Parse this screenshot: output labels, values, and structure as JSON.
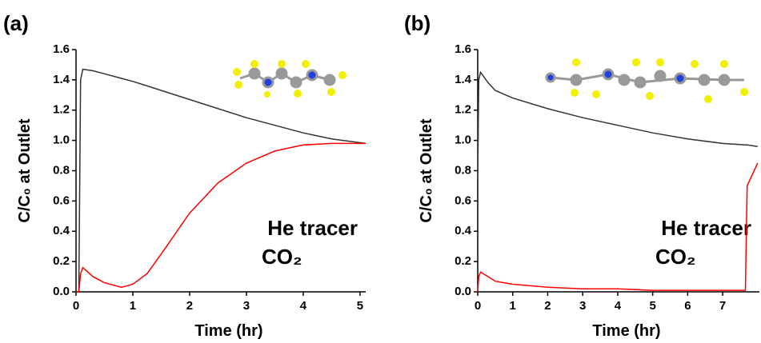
{
  "chart_data": [
    {
      "type": "line",
      "panel_label": "(a)",
      "x_label": "Time (hr)",
      "y_label": "C/C₀ at Outlet",
      "x": [
        0,
        0.05,
        0.08,
        0.12,
        0.3,
        0.5,
        0.8,
        1,
        1.25,
        1.5,
        2,
        2.5,
        3,
        3.5,
        4,
        4.5,
        5.1
      ],
      "series": [
        {
          "name": "He tracer",
          "color": "#333333",
          "values": [
            0,
            0,
            1.4,
            1.47,
            1.46,
            1.44,
            1.41,
            1.39,
            1.36,
            1.33,
            1.27,
            1.21,
            1.15,
            1.1,
            1.05,
            1.01,
            0.98
          ]
        },
        {
          "name": "CO₂",
          "color": "#ff0000",
          "values": [
            0,
            0,
            0.12,
            0.16,
            0.1,
            0.06,
            0.03,
            0.05,
            0.12,
            0.25,
            0.52,
            0.72,
            0.85,
            0.93,
            0.97,
            0.98,
            0.98
          ]
        }
      ],
      "xlim": [
        0,
        5.1
      ],
      "xticks": [
        0,
        1,
        2,
        3,
        4,
        5
      ],
      "ylim": [
        0,
        1.6
      ],
      "yticks": [
        {
          "value": 0,
          "label": "0.0"
        },
        0.2,
        0.4,
        0.6,
        0.8,
        {
          "value": 1,
          "label": "1.0"
        },
        1.2,
        1.4,
        1.6
      ]
    },
    {
      "type": "line",
      "panel_label": "(b)",
      "x_label": "Time (hr)",
      "y_label": "C/C₀ at Outlet",
      "x": [
        0,
        0.03,
        0.08,
        0.3,
        0.5,
        1,
        2,
        3,
        4,
        5,
        6,
        7,
        7.65,
        7.7,
        8.0
      ],
      "series": [
        {
          "name": "He tracer",
          "color": "#333333",
          "values": [
            0.75,
            1.4,
            1.45,
            1.38,
            1.33,
            1.28,
            1.21,
            1.15,
            1.1,
            1.05,
            1.01,
            0.98,
            0.97,
            0.97,
            0.96
          ]
        },
        {
          "name": "CO₂",
          "color": "#ff0000",
          "values": [
            0,
            0.1,
            0.13,
            0.1,
            0.07,
            0.05,
            0.03,
            0.02,
            0.02,
            0.01,
            0.01,
            0.01,
            0.01,
            0.7,
            0.85
          ]
        }
      ],
      "xlim": [
        0,
        8.05
      ],
      "xticks": [
        0,
        1,
        2,
        3,
        4,
        5,
        6,
        7
      ],
      "ylim": [
        0,
        1.6
      ],
      "yticks": [
        {
          "value": 0,
          "label": "0.0"
        },
        0.2,
        0.4,
        0.6,
        0.8,
        {
          "value": 1,
          "label": "1.0"
        },
        1.2,
        1.4,
        1.6
      ]
    }
  ]
}
